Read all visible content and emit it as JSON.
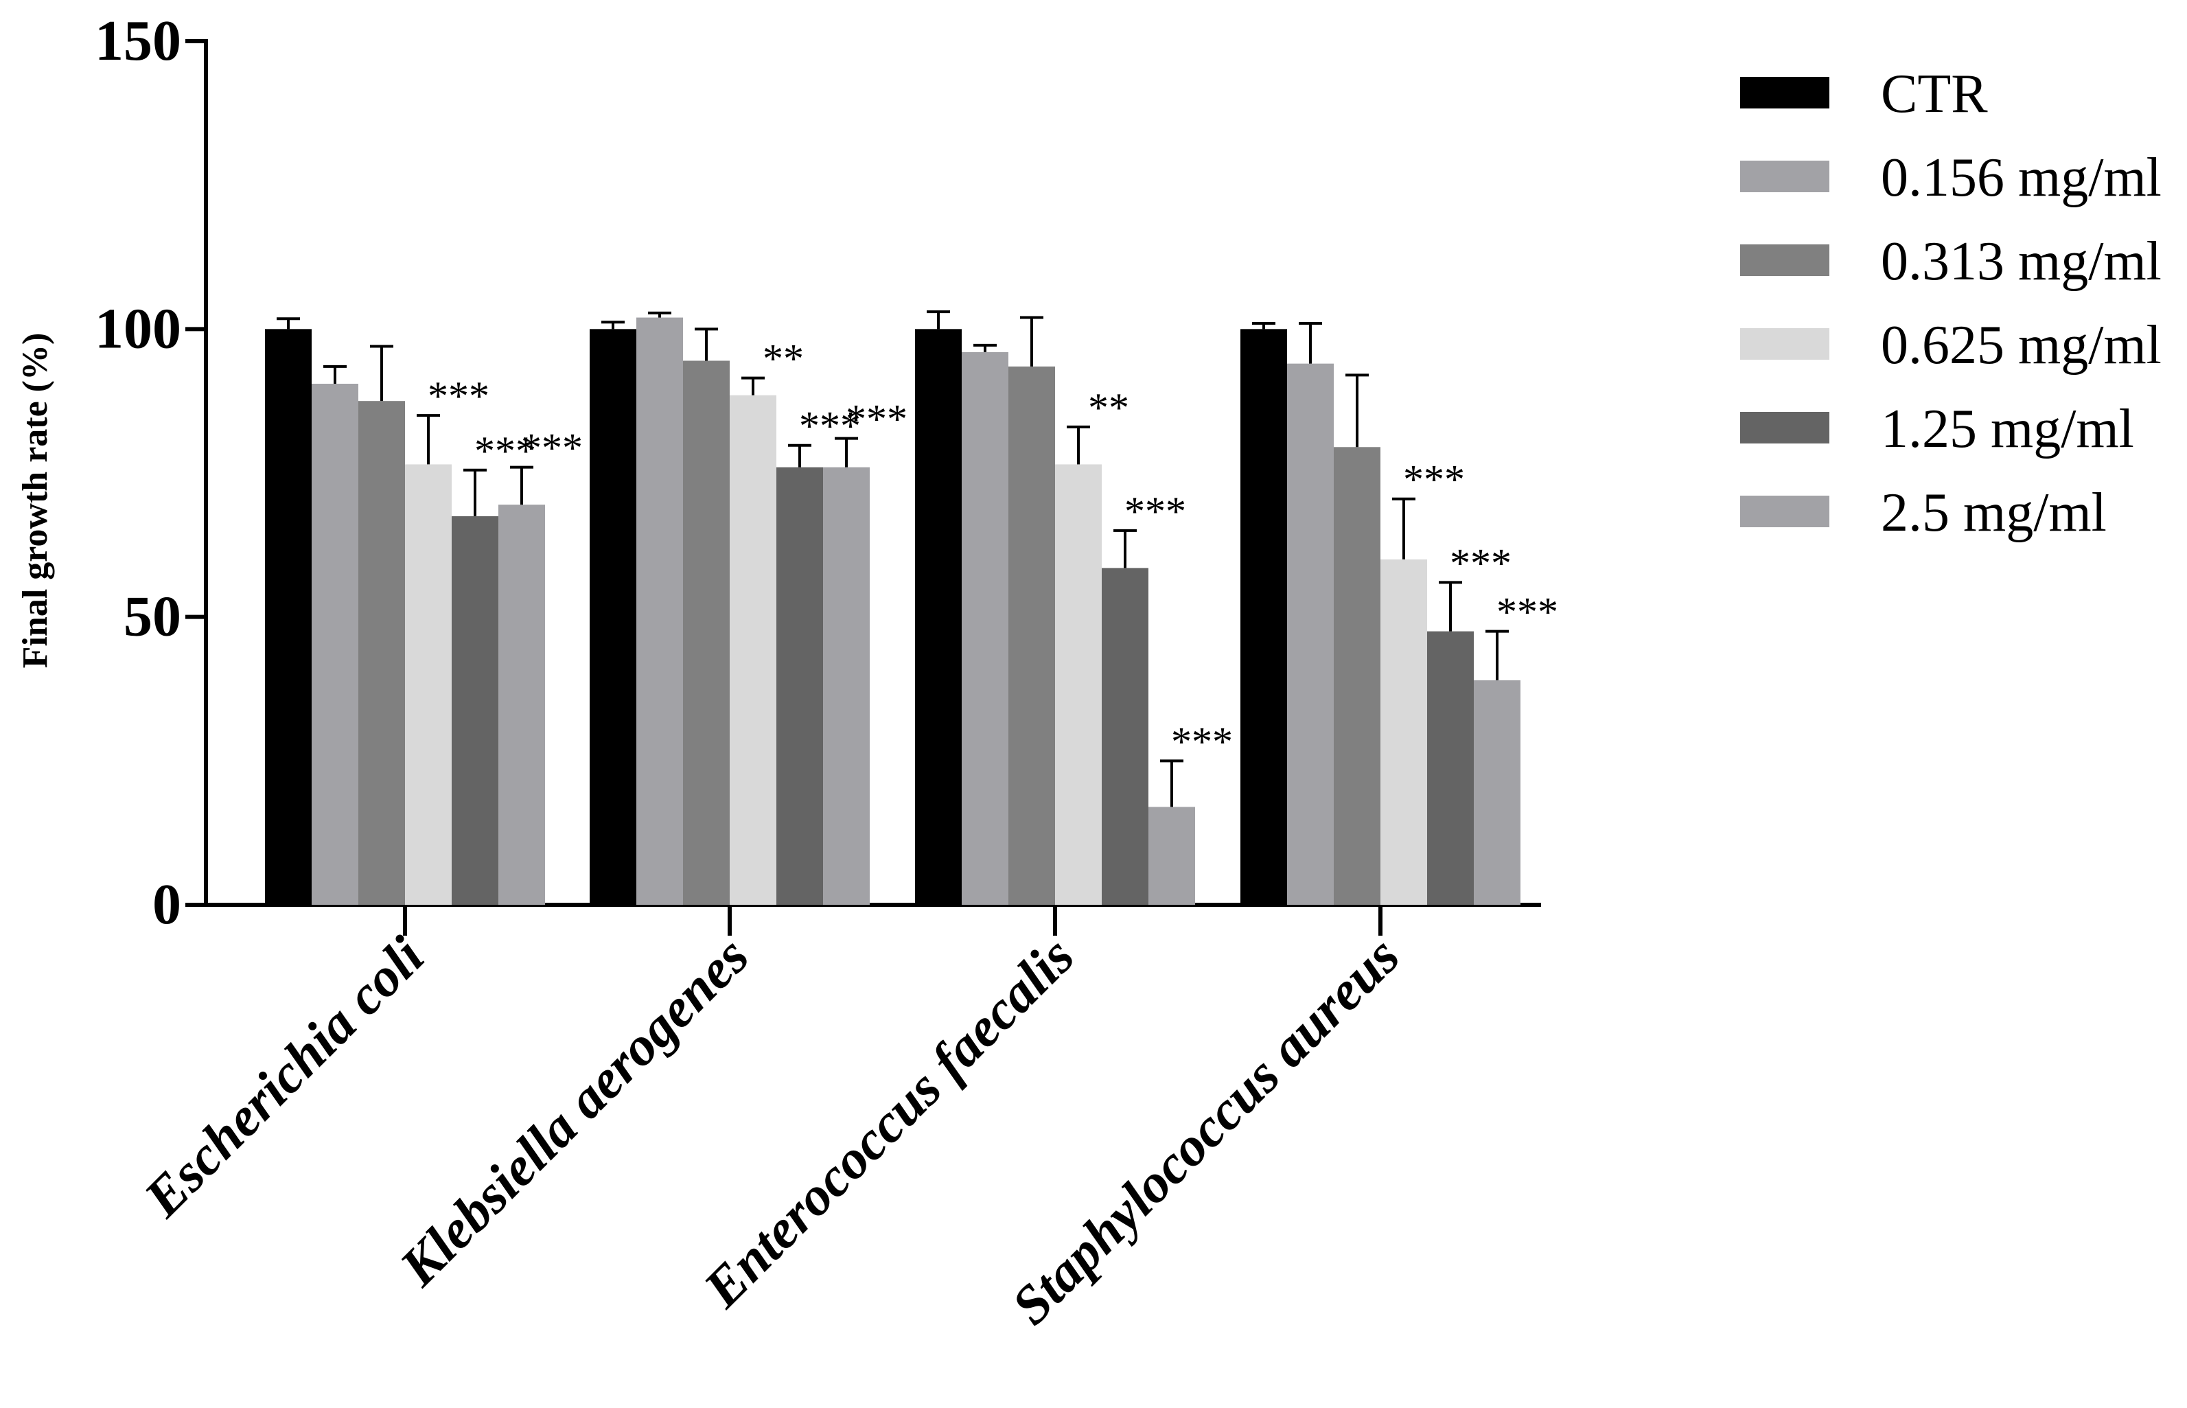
{
  "chart_data": {
    "type": "bar",
    "title": "",
    "xlabel": "",
    "ylabel": "Final growth rate (%)",
    "ylim": [
      0,
      150
    ],
    "yticks": [
      0,
      50,
      100,
      150
    ],
    "grid": false,
    "legend_position": "top-right",
    "categories": [
      "Escherichia coli",
      "Klebsiella aerogenes",
      "Enterococcus faecalis",
      "Staphylococcus aureus"
    ],
    "series": [
      {
        "name": "CTR",
        "color": "#000000",
        "values": [
          100,
          100,
          100,
          100
        ],
        "errors": [
          1.8,
          1.2,
          3.0,
          1.0
        ],
        "significance": [
          "",
          "",
          "",
          ""
        ]
      },
      {
        "name": "0.156 mg/ml",
        "color": "#a2a2a6",
        "values": [
          90.5,
          102,
          96,
          94
        ],
        "errors": [
          3.0,
          0.8,
          1.2,
          7.0
        ],
        "significance": [
          "",
          "",
          "",
          ""
        ]
      },
      {
        "name": "0.313 mg/ml",
        "color": "#808080",
        "values": [
          87.5,
          94.5,
          93.5,
          79.5
        ],
        "errors": [
          9.5,
          5.5,
          8.5,
          12.5
        ],
        "significance": [
          "",
          "",
          "",
          ""
        ]
      },
      {
        "name": "0.625 mg/ml",
        "color": "#d9d9d9",
        "values": [
          76.5,
          88.5,
          76.5,
          60
        ],
        "errors": [
          8.5,
          3.0,
          6.5,
          10.5
        ],
        "significance": [
          "***",
          "**",
          "**",
          "***"
        ]
      },
      {
        "name": "1.25 mg/ml",
        "color": "#646464",
        "values": [
          67.5,
          76,
          58.5,
          47.5
        ],
        "errors": [
          8.0,
          3.8,
          6.5,
          8.5
        ],
        "significance": [
          "***",
          "***",
          "***",
          "***"
        ]
      },
      {
        "name": "2.5 mg/ml",
        "color": "#a2a2a6",
        "values": [
          69.5,
          76,
          17,
          39
        ],
        "errors": [
          6.5,
          5.0,
          8.0,
          8.5
        ],
        "significance": [
          "***",
          "***",
          "***",
          "***"
        ]
      }
    ]
  }
}
